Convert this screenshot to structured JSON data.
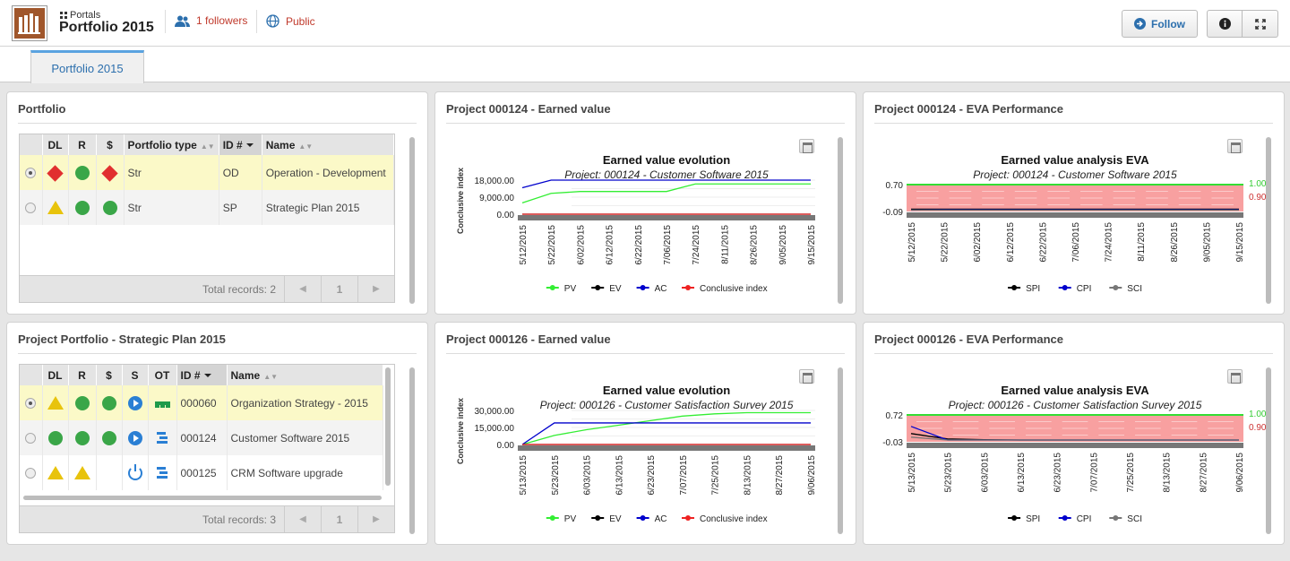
{
  "header": {
    "portals_label": "Portals",
    "title": "Portfolio 2015",
    "followers": "1 followers",
    "visibility": "Public",
    "follow_button": "Follow"
  },
  "tabs": [
    {
      "label": "Portfolio 2015"
    }
  ],
  "portfolio_panel": {
    "title": "Portfolio",
    "columns": [
      "DL",
      "R",
      "$",
      "Portfolio type",
      "ID #",
      "Name"
    ],
    "rows": [
      {
        "dl": "red-diamond",
        "r": "green-circle",
        "cost": "red-diamond",
        "type": "Str",
        "id": "OD",
        "name": "Operation - Development",
        "selected": true
      },
      {
        "dl": "yellow-triangle",
        "r": "green-circle",
        "cost": "green-circle",
        "type": "Str",
        "id": "SP",
        "name": "Strategic Plan 2015",
        "selected": false
      }
    ],
    "total_records": "Total records: 2",
    "page": "1"
  },
  "strategic_panel": {
    "title": "Project Portfolio - Strategic Plan 2015",
    "columns": [
      "DL",
      "R",
      "$",
      "S",
      "OT",
      "ID #",
      "Name"
    ],
    "rows": [
      {
        "dl": "yellow-triangle",
        "r": "green-circle",
        "cost": "green-circle",
        "s": "play-icon",
        "ot": "bars-icon",
        "id": "000060",
        "name": "Organization Strategy - 2015",
        "selected": true
      },
      {
        "dl": "green-circle",
        "r": "green-circle",
        "cost": "green-circle",
        "s": "play-icon",
        "ot": "list-icon",
        "id": "000124",
        "name": "Customer Software 2015",
        "selected": false
      },
      {
        "dl": "yellow-triangle",
        "r": "yellow-triangle",
        "cost": "",
        "s": "power-icon",
        "ot": "list-icon",
        "id": "000125",
        "name": "CRM Software upgrade",
        "selected": false
      }
    ],
    "total_records": "Total records: 3",
    "page": "1"
  },
  "chart_panels": [
    {
      "title": "Project 000124 - Earned value"
    },
    {
      "title": "Project 000124 - EVA Performance"
    },
    {
      "title": "Project 000126 - Earned value"
    },
    {
      "title": "Project 000126 - EVA Performance"
    }
  ],
  "chart_data": [
    {
      "type": "line",
      "title": "Earned value evolution",
      "subtitle": "Project: 000124 - Customer Software 2015",
      "ylabel": "Conclusive index",
      "yticks": [
        "18,000.00",
        "9,000.00",
        "0.00"
      ],
      "ylim": [
        0,
        18000
      ],
      "x": [
        "5/12/2015",
        "5/22/2015",
        "6/02/2015",
        "6/12/2015",
        "6/22/2015",
        "7/06/2015",
        "7/24/2015",
        "8/11/2015",
        "8/26/2015",
        "9/05/2015",
        "9/15/2015"
      ],
      "series": [
        {
          "name": "PV",
          "color": "#33ee33",
          "values": [
            6000,
            11000,
            12000,
            12000,
            12000,
            12000,
            16000,
            16000,
            16000,
            16000,
            16000
          ]
        },
        {
          "name": "EV",
          "color": "#000000",
          "values": [
            0,
            0,
            0,
            0,
            0,
            0,
            0,
            0,
            0,
            0,
            0
          ]
        },
        {
          "name": "AC",
          "color": "#0000cc",
          "values": [
            14000,
            18000,
            18000,
            18000,
            18000,
            18000,
            18000,
            18000,
            18000,
            18000,
            18000
          ]
        },
        {
          "name": "Conclusive index",
          "color": "#ee2222",
          "values": [
            0,
            0,
            0,
            0,
            0,
            0,
            0,
            0,
            0,
            0,
            0
          ]
        }
      ]
    },
    {
      "type": "line",
      "title": "Earned value analysis EVA",
      "subtitle": "Project: 000124 - Customer Software 2015",
      "yticks": [
        "0.70",
        "-0.09"
      ],
      "ylim": [
        -0.09,
        0.7
      ],
      "right_labels": [
        {
          "text": "1.00",
          "color": "#33cc33"
        },
        {
          "text": "0.90",
          "color": "#cc3333"
        }
      ],
      "x": [
        "5/12/2015",
        "5/22/2015",
        "6/02/2015",
        "6/12/2015",
        "6/22/2015",
        "7/06/2015",
        "7/24/2015",
        "8/11/2015",
        "8/26/2015",
        "9/05/2015",
        "9/15/2015"
      ],
      "series": [
        {
          "name": "SPI",
          "color": "#000000",
          "values": [
            -0.02,
            -0.02,
            -0.02,
            -0.02,
            -0.02,
            -0.02,
            -0.02,
            -0.02,
            -0.02,
            -0.02,
            -0.02
          ]
        },
        {
          "name": "CPI",
          "color": "#0000cc",
          "values": [
            -0.05,
            -0.04,
            -0.04,
            -0.04,
            -0.04,
            -0.04,
            -0.04,
            -0.04,
            -0.04,
            -0.04,
            -0.04
          ]
        },
        {
          "name": "SCI",
          "color": "#777777",
          "values": [
            -0.05,
            -0.05,
            -0.05,
            -0.05,
            -0.05,
            -0.05,
            -0.05,
            -0.05,
            -0.05,
            -0.05,
            -0.05
          ]
        }
      ]
    },
    {
      "type": "line",
      "title": "Earned value evolution",
      "subtitle": "Project: 000126 - Customer Satisfaction Survey 2015",
      "ylabel": "Conclusive index",
      "yticks": [
        "30,000.00",
        "15,000.00",
        "0.00"
      ],
      "ylim": [
        0,
        30000
      ],
      "x": [
        "5/13/2015",
        "5/23/2015",
        "6/03/2015",
        "6/13/2015",
        "6/23/2015",
        "7/07/2015",
        "7/25/2015",
        "8/13/2015",
        "8/27/2015",
        "9/06/2015"
      ],
      "series": [
        {
          "name": "PV",
          "color": "#33ee33",
          "values": [
            0,
            8000,
            13000,
            17000,
            21000,
            25000,
            27000,
            28000,
            28000,
            28000
          ]
        },
        {
          "name": "EV",
          "color": "#000000",
          "values": [
            0,
            0,
            0,
            0,
            0,
            0,
            0,
            0,
            0,
            0
          ]
        },
        {
          "name": "AC",
          "color": "#0000cc",
          "values": [
            0,
            19000,
            19000,
            19000,
            19000,
            19000,
            19000,
            19000,
            19000,
            19000
          ]
        },
        {
          "name": "Conclusive index",
          "color": "#ee2222",
          "values": [
            0,
            0,
            0,
            0,
            0,
            0,
            0,
            0,
            0,
            0
          ]
        }
      ]
    },
    {
      "type": "line",
      "title": "Earned value analysis EVA",
      "subtitle": "Project: 000126 - Customer Satisfaction Survey 2015",
      "yticks": [
        "0.72",
        "-0.03"
      ],
      "ylim": [
        -0.03,
        0.72
      ],
      "right_labels": [
        {
          "text": "1.00",
          "color": "#33cc33"
        },
        {
          "text": "0.90",
          "color": "#cc3333"
        }
      ],
      "x": [
        "5/13/2015",
        "5/23/2015",
        "6/03/2015",
        "6/13/2015",
        "6/23/2015",
        "7/07/2015",
        "7/25/2015",
        "8/13/2015",
        "8/27/2015",
        "9/06/2015"
      ],
      "series": [
        {
          "name": "SPI",
          "color": "#000000",
          "values": [
            0.2,
            0.05,
            0.03,
            0.02,
            0.02,
            0.02,
            0.02,
            0.02,
            0.02,
            0.02
          ]
        },
        {
          "name": "CPI",
          "color": "#0000cc",
          "values": [
            0.4,
            0.02,
            0.02,
            0.02,
            0.02,
            0.02,
            0.02,
            0.02,
            0.02,
            0.02
          ]
        },
        {
          "name": "SCI",
          "color": "#777777",
          "values": [
            0.1,
            0.02,
            0.02,
            0.02,
            0.02,
            0.02,
            0.02,
            0.02,
            0.02,
            0.02
          ]
        }
      ]
    }
  ]
}
